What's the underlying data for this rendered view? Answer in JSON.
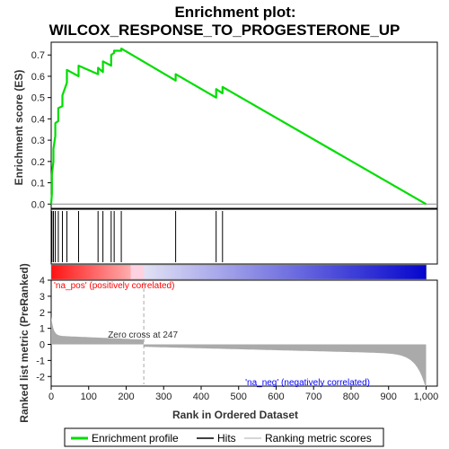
{
  "chart_data": {
    "type": "line",
    "title_line1": "Enrichment plot:",
    "title_line2": "WILCOX_RESPONSE_TO_PROGESTERONE_UP",
    "xlabel": "Rank in Ordered Dataset",
    "ylabel_top": "Enrichment score (ES)",
    "ylabel_bottom": "Ranked list metric (PreRanked)",
    "xlim": [
      0,
      1030
    ],
    "x_ticks": [
      0,
      100,
      200,
      300,
      400,
      500,
      600,
      700,
      800,
      900,
      1000
    ],
    "x_tick_labels": [
      "0",
      "100",
      "200",
      "300",
      "400",
      "500",
      "600",
      "700",
      "800",
      "900",
      "1,000"
    ],
    "es_ylim": [
      -0.02,
      0.76
    ],
    "es_ticks": [
      0.0,
      0.1,
      0.2,
      0.3,
      0.4,
      0.5,
      0.6,
      0.7
    ],
    "es_tick_labels": [
      "0.0",
      "0.1",
      "0.2",
      "0.3",
      "0.4",
      "0.5",
      "0.6",
      "0.7"
    ],
    "metric_ylim": [
      -2.6,
      4.0
    ],
    "metric_ticks": [
      -2,
      -1,
      0,
      1,
      2,
      3,
      4
    ],
    "metric_tick_labels": [
      "-2",
      "-1",
      "0",
      "1",
      "2",
      "3",
      "4"
    ],
    "series": [
      {
        "name": "Enrichment profile",
        "color": "#00dd00",
        "x": [
          0,
          2,
          2,
          6,
          6,
          11,
          11,
          19,
          19,
          30,
          30,
          42,
          42,
          73,
          73,
          125,
          125,
          138,
          138,
          160,
          160,
          168,
          168,
          187,
          187,
          332,
          332,
          440,
          440,
          457,
          457,
          1000
        ],
        "y": [
          0,
          0.05,
          0.14,
          0.2,
          0.26,
          0.32,
          0.38,
          0.39,
          0.45,
          0.46,
          0.51,
          0.57,
          0.63,
          0.6,
          0.65,
          0.61,
          0.64,
          0.62,
          0.67,
          0.65,
          0.7,
          0.71,
          0.72,
          0.72,
          0.73,
          0.58,
          0.61,
          0.5,
          0.54,
          0.52,
          0.55,
          0.0
        ]
      }
    ],
    "hits": [
      2,
      6,
      11,
      19,
      30,
      42,
      73,
      125,
      138,
      160,
      168,
      187,
      332,
      440,
      457
    ],
    "zero_cross_rank": 247,
    "annotations": {
      "zero_cross": "Zero cross at 247",
      "na_pos": "'na_pos' (positively correlated)",
      "na_neg": "'na_neg' (negatively correlated)"
    },
    "legend": [
      {
        "label": "Enrichment profile",
        "color": "#00dd00"
      },
      {
        "label": "Hits",
        "color": "#000000"
      },
      {
        "label": "Ranking metric scores",
        "color": "#c8c8c8"
      }
    ],
    "colors": {
      "es_line": "#00dd00",
      "metric_fill": "#aaaaaa",
      "na_pos_text": "#ff0000",
      "na_neg_text": "#0000ff"
    }
  }
}
